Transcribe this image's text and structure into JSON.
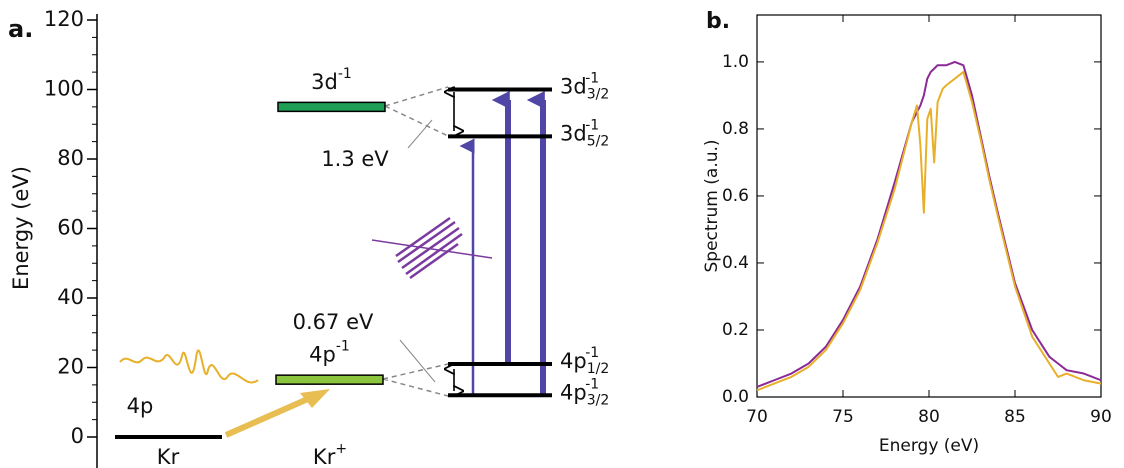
{
  "chart_data": [
    {
      "type": "levels",
      "panel": "a.",
      "ylabel": "Energy (eV)",
      "ylim": [
        0,
        120
      ],
      "yticks": [
        0,
        20,
        40,
        60,
        80,
        100,
        120
      ],
      "columns": [
        {
          "base": "Kr"
        },
        {
          "base": "Kr",
          "sup": "+"
        }
      ],
      "levels": [
        {
          "energy": 0,
          "color": "#000000",
          "label": {
            "base": "4p"
          }
        },
        {
          "energy": 16.5,
          "color": "#8cc63f",
          "label": {
            "base": "4p",
            "sup": "-1"
          }
        },
        {
          "energy": 95,
          "color": "#1f9e55",
          "label": {
            "base": "3d",
            "sup": "-1"
          }
        },
        {
          "energy": 100,
          "color": "#000000",
          "label": {
            "base": "3d",
            "sub": "3/2",
            "sup": "-1"
          }
        },
        {
          "energy": 86.5,
          "color": "#000000",
          "label": {
            "base": "3d",
            "sub": "5/2",
            "sup": "-1"
          }
        },
        {
          "energy": 21,
          "color": "#000000",
          "label": {
            "base": "4p",
            "sub": "1/2",
            "sup": "-1"
          }
        },
        {
          "energy": 12,
          "color": "#000000",
          "label": {
            "base": "4p",
            "sub": "3/2",
            "sup": "-1"
          }
        }
      ],
      "annotations": [
        "1.3 eV",
        "0.67 eV"
      ]
    },
    {
      "type": "line",
      "panel": "b.",
      "xlabel": "Energy (eV)",
      "ylabel": "Spectrum (a.u.)",
      "xlim": [
        70,
        90
      ],
      "xticks": [
        70,
        75,
        80,
        85,
        90
      ],
      "ylim": [
        0,
        1.14
      ],
      "yticks": [
        {
          "value": 0,
          "label": "0.0"
        },
        {
          "value": 0.2,
          "label": "0.2"
        },
        {
          "value": 0.4,
          "label": "0.4"
        },
        {
          "value": 0.6,
          "label": "0.6"
        },
        {
          "value": 0.8,
          "label": "0.8"
        },
        {
          "value": 1,
          "label": "1.0"
        }
      ],
      "x": [
        70,
        71,
        72,
        73,
        74,
        75,
        76,
        77,
        78,
        78.5,
        79,
        79.3,
        79.5,
        79.7,
        79.9,
        80.1,
        80.3,
        80.5,
        80.8,
        81,
        81.5,
        82,
        82.5,
        83,
        83.5,
        84,
        85,
        86,
        87,
        87.5,
        88,
        89,
        90
      ],
      "series": [
        {
          "color": "#8b2a96",
          "values": [
            0.03,
            0.05,
            0.07,
            0.1,
            0.15,
            0.23,
            0.33,
            0.47,
            0.64,
            0.73,
            0.82,
            0.85,
            0.87,
            0.9,
            0.95,
            0.97,
            0.98,
            0.99,
            0.99,
            0.99,
            1.0,
            0.99,
            0.9,
            0.78,
            0.66,
            0.55,
            0.34,
            0.2,
            0.12,
            0.1,
            0.08,
            0.07,
            0.05
          ]
        },
        {
          "color": "#e8b02a",
          "values": [
            0.02,
            0.04,
            0.06,
            0.09,
            0.14,
            0.22,
            0.32,
            0.46,
            0.62,
            0.72,
            0.82,
            0.87,
            0.75,
            0.55,
            0.83,
            0.86,
            0.7,
            0.88,
            0.92,
            0.93,
            0.95,
            0.97,
            0.88,
            0.77,
            0.65,
            0.54,
            0.33,
            0.18,
            0.1,
            0.06,
            0.07,
            0.05,
            0.04
          ]
        }
      ]
    }
  ]
}
